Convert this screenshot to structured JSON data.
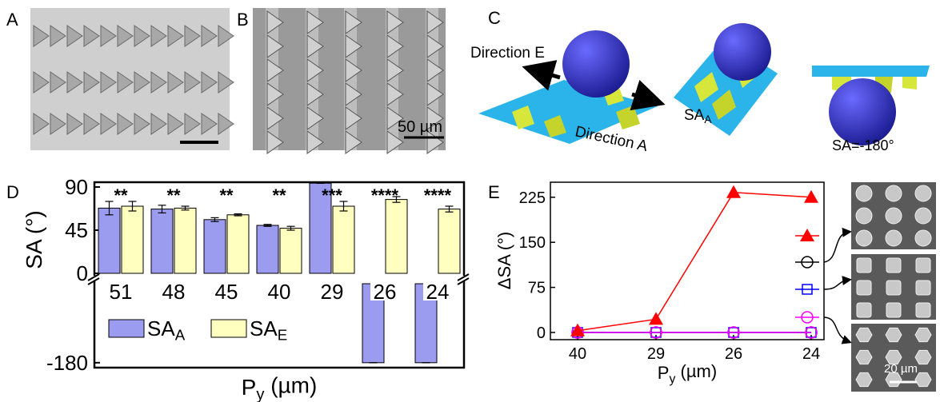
{
  "panel_a": {
    "label": "A"
  },
  "panel_b": {
    "label": "B",
    "scale_bar": "50 µm"
  },
  "panel_c": {
    "label": "C",
    "direction_e": "Direction E",
    "direction_a": "Direction A",
    "state_a": "SA_A",
    "state_inverted": "SA=-180°"
  },
  "chart_data": [
    {
      "type": "bar",
      "label": "D",
      "categories": [
        "51",
        "48",
        "45",
        "40",
        "29",
        "26",
        "24"
      ],
      "series": [
        {
          "name": "SA_A",
          "color": "#9b9bef",
          "values": [
            68,
            67,
            56,
            50,
            94,
            -180,
            -180
          ],
          "errors": [
            7,
            4,
            2,
            1,
            0,
            0,
            0
          ]
        },
        {
          "name": "SA_E",
          "color": "#ffffc0",
          "values": [
            70,
            68,
            61,
            47,
            70,
            77,
            67
          ],
          "errors": [
            5,
            2,
            1,
            2,
            5,
            3,
            3
          ]
        }
      ],
      "annotations": [
        "**",
        "**",
        "**",
        "**",
        "***",
        "****",
        "****"
      ],
      "ylim": [
        -185,
        95
      ],
      "ybreak": [
        -100,
        0
      ],
      "yticks": [
        -180,
        0,
        45,
        90
      ],
      "xlabel": "P_y (µm)",
      "ylabel": "SA (°)",
      "legend": "lower left"
    },
    {
      "type": "line",
      "label": "E",
      "categories": [
        "40",
        "29",
        "26",
        "24"
      ],
      "series": [
        {
          "color": "#ff0000",
          "marker": "triangle",
          "values": [
            3,
            22,
            233,
            225
          ],
          "errors": [
            2,
            3,
            3,
            4
          ]
        },
        {
          "color": "#000000",
          "marker": "circle",
          "values": [
            0,
            0,
            0,
            0
          ]
        },
        {
          "color": "#0000ff",
          "marker": "square",
          "values": [
            0,
            0,
            0,
            0
          ]
        },
        {
          "color": "#ff00ff",
          "marker": "circle",
          "values": [
            0,
            0,
            0,
            0
          ]
        }
      ],
      "ylim": [
        -12,
        250
      ],
      "yticks": [
        0,
        75,
        150,
        225
      ],
      "xlabel": "P_y (µm)",
      "ylabel": "ΔSA (°)",
      "legend": "right"
    }
  ],
  "panel_e_images": {
    "scale_bar": "20 µm"
  }
}
